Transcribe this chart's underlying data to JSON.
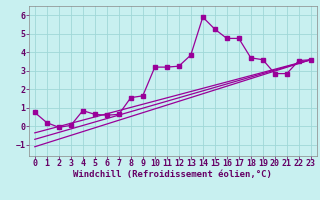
{
  "xlabel": "Windchill (Refroidissement éolien,°C)",
  "bg_color": "#c8f0f0",
  "line_color": "#990099",
  "xlim": [
    -0.5,
    23.5
  ],
  "ylim": [
    -1.6,
    6.5
  ],
  "yticks": [
    -1,
    0,
    1,
    2,
    3,
    4,
    5,
    6
  ],
  "xticks": [
    0,
    1,
    2,
    3,
    4,
    5,
    6,
    7,
    8,
    9,
    10,
    11,
    12,
    13,
    14,
    15,
    16,
    17,
    18,
    19,
    20,
    21,
    22,
    23
  ],
  "line1_x": [
    0,
    1,
    2,
    3,
    4,
    5,
    6,
    7,
    8,
    9,
    10,
    11,
    12,
    13,
    14,
    15,
    16,
    17,
    18,
    19,
    20,
    21,
    22,
    23
  ],
  "line1_y": [
    0.75,
    0.2,
    -0.05,
    0.05,
    0.85,
    0.65,
    0.6,
    0.65,
    1.55,
    1.65,
    3.2,
    3.2,
    3.25,
    3.85,
    5.9,
    5.25,
    4.75,
    4.75,
    3.7,
    3.6,
    2.85,
    2.85,
    3.55,
    3.6
  ],
  "line2_x": [
    0,
    23
  ],
  "line2_y": [
    -1.1,
    3.6
  ],
  "line3_x": [
    0,
    23
  ],
  "line3_y": [
    -0.7,
    3.6
  ],
  "line4_x": [
    0,
    23
  ],
  "line4_y": [
    -0.35,
    3.6
  ],
  "grid_color": "#a0d8d8",
  "xlabel_fontsize": 6.5,
  "tick_fontsize": 6.0
}
